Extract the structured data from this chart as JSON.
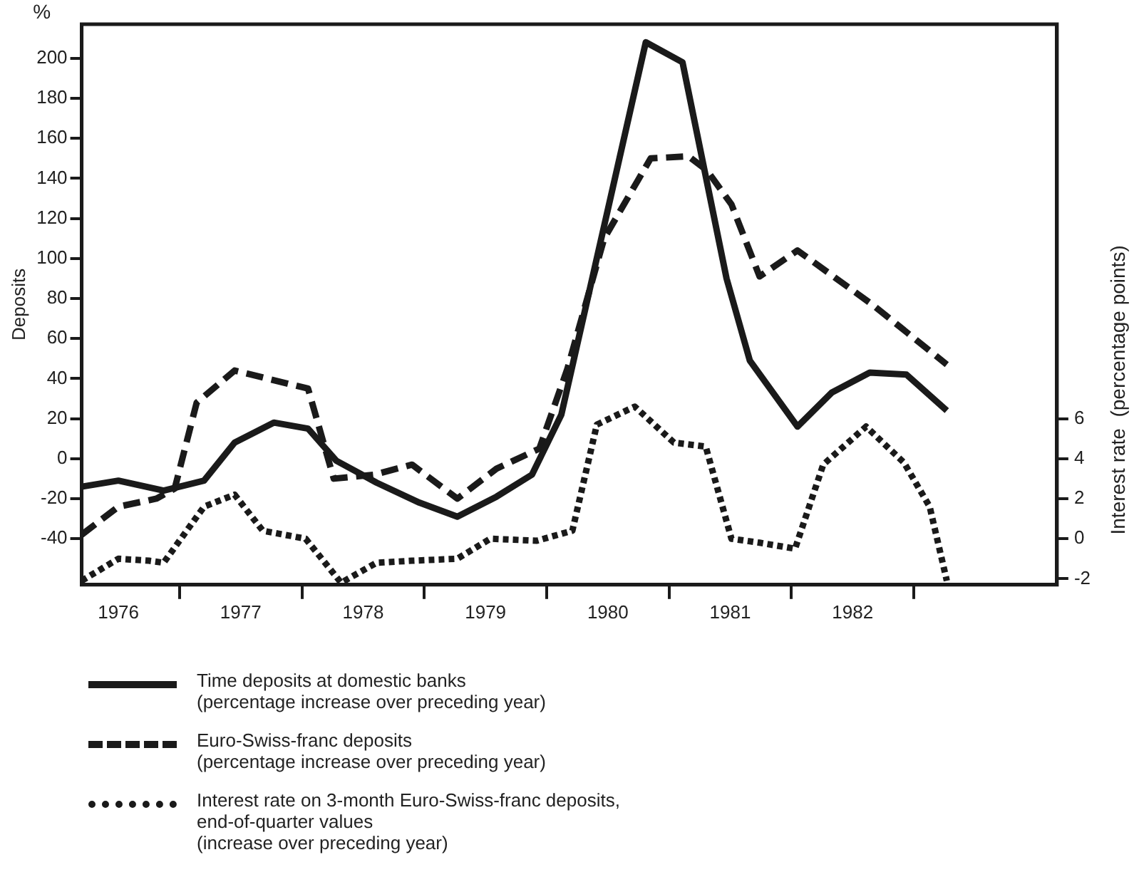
{
  "chart_data": {
    "type": "line",
    "ylabel": "Deposits",
    "y2label": "Interest rate  (percentage points)",
    "annotations": [
      "%"
    ],
    "xlim": [
      1976.2,
      1984.17
    ],
    "ylim": [
      -63,
      217
    ],
    "y2lim": [
      -2.3,
      25.7
    ],
    "xticks": [
      {
        "value": 1976.5,
        "label": "1976"
      },
      {
        "value": 1977,
        "label": null
      },
      {
        "value": 1977.5,
        "label": "1977"
      },
      {
        "value": 1978,
        "label": null
      },
      {
        "value": 1978.5,
        "label": "1978"
      },
      {
        "value": 1979,
        "label": null
      },
      {
        "value": 1979.5,
        "label": "1979"
      },
      {
        "value": 1980,
        "label": null
      },
      {
        "value": 1980.5,
        "label": "1980"
      },
      {
        "value": 1981,
        "label": null
      },
      {
        "value": 1981.5,
        "label": "1981"
      },
      {
        "value": 1982,
        "label": null
      },
      {
        "value": 1982.5,
        "label": "1982"
      },
      {
        "value": 1983,
        "label": null
      }
    ],
    "yticks": [
      -40,
      -20,
      0,
      20,
      40,
      60,
      80,
      100,
      120,
      140,
      160,
      180,
      200
    ],
    "y2ticks": [
      -2,
      0,
      2,
      4,
      6
    ],
    "grid": false,
    "legend": "bottom",
    "marker": "none",
    "series": [
      {
        "name": "Time deposits at domestic banks\n(percentage increase over preceding year)",
        "color": "#1a1a1a",
        "line_style": "solid",
        "x": [
          1976.2,
          1976.5,
          1976.87,
          1977.2,
          1977.45,
          1977.77,
          1978.05,
          1978.28,
          1978.61,
          1978.96,
          1979.27,
          1979.59,
          1979.88,
          1980.12,
          1980.81,
          1981.11,
          1981.47,
          1981.66,
          1982.05,
          1982.33,
          1982.64,
          1982.94,
          1983.27
        ],
        "values": [
          -14,
          -11,
          -16,
          -11,
          8,
          18,
          15,
          -1,
          -12,
          -22,
          -29,
          -19,
          -8,
          22,
          208,
          198,
          90,
          49,
          16,
          33,
          43,
          42,
          24
        ]
      },
      {
        "name": "Euro-Swiss-franc deposits\n(percentage increase over preceding year)",
        "color": "#1a1a1a",
        "line_style": "dashed",
        "x": [
          1976.2,
          1976.5,
          1976.81,
          1976.96,
          1977.14,
          1977.45,
          1978.05,
          1978.26,
          1978.59,
          1978.9,
          1979.27,
          1979.59,
          1979.94,
          1980.17,
          1980.47,
          1980.85,
          1981.16,
          1981.31,
          1981.51,
          1981.74,
          1982.05,
          1982.66,
          1983.27
        ],
        "values": [
          -38,
          -24,
          -20,
          -15,
          28,
          44,
          35,
          -10,
          -8,
          -3,
          -20,
          -5,
          5,
          45,
          110,
          150,
          151,
          144,
          127,
          91,
          104,
          77,
          47
        ]
      },
      {
        "name": "Interest rate on 3-month Euro-Swiss-franc deposits,\nend-of-quarter values\n(increase over preceding year)",
        "color": "#1a1a1a",
        "line_style": "dotted",
        "axis": "y2",
        "x": [
          1976.2,
          1976.5,
          1976.75,
          1976.87,
          1977.2,
          1977.45,
          1977.68,
          1978.03,
          1978.32,
          1978.61,
          1978.9,
          1979.27,
          1979.54,
          1979.92,
          1980.21,
          1980.41,
          1980.72,
          1981.04,
          1981.3,
          1981.51,
          1981.74,
          1982.03,
          1982.26,
          1982.61,
          1982.92,
          1983.13,
          1983.27
        ],
        "values": [
          -2.1,
          -1,
          -1.1,
          -1.2,
          1.6,
          2.2,
          0.4,
          0,
          -2.2,
          -1.2,
          -1.1,
          -1,
          0,
          -0.1,
          0.4,
          5.7,
          6.6,
          4.8,
          4.6,
          0,
          -0.2,
          -0.5,
          3.7,
          5.6,
          3.8,
          1.6,
          -2.1
        ]
      }
    ]
  }
}
